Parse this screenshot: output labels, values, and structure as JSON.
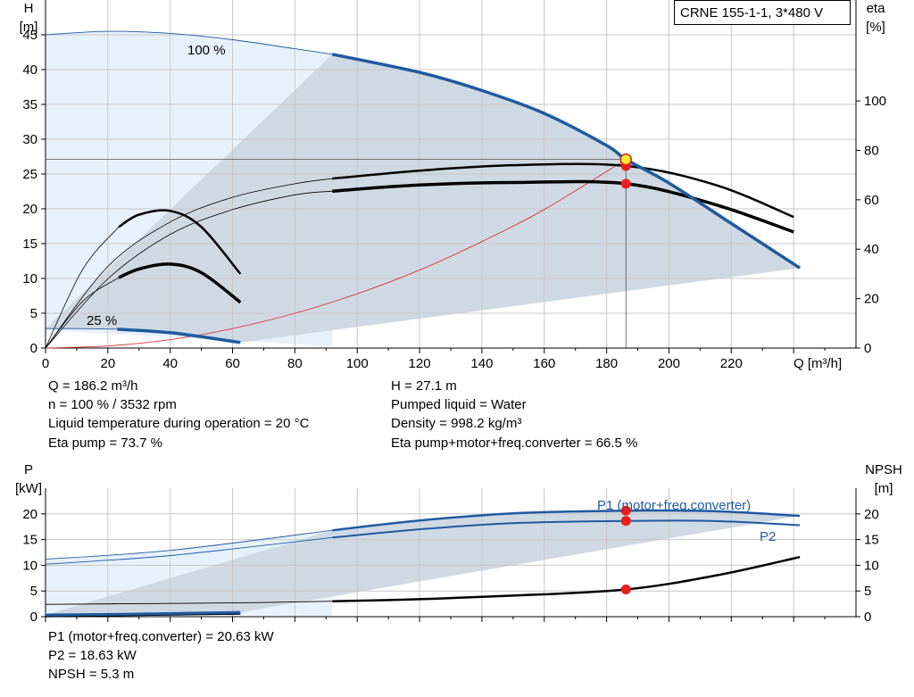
{
  "header": {
    "title": "CRNE 155-1-1, 3*480 V"
  },
  "chart_data": [
    {
      "type": "line",
      "name": "head",
      "left_axis": {
        "label": [
          "H",
          "[m]"
        ],
        "ticks": [
          0,
          5,
          10,
          15,
          20,
          25,
          30,
          35,
          40,
          45
        ],
        "lim": [
          0,
          50
        ]
      },
      "right_axis": {
        "label": [
          "eta",
          "[%]"
        ],
        "ticks": [
          0,
          20,
          40,
          60,
          80,
          100
        ],
        "lim": [
          0,
          140.85
        ]
      },
      "x_axis": {
        "label": "Q [m³/h]",
        "ticks": [
          0,
          20,
          40,
          60,
          80,
          100,
          120,
          140,
          160,
          180,
          200,
          220
        ],
        "lim": [
          0,
          260
        ]
      },
      "grid": true,
      "curve_labels": [
        "100 %",
        "25 %"
      ],
      "series": [
        {
          "id": "H_100",
          "axis": "left",
          "color": "#1f5aa0",
          "x": [
            0,
            20,
            40,
            60,
            80,
            92,
            120,
            140,
            160,
            180,
            186.2,
            200,
            220,
            242
          ],
          "y": [
            45,
            45.5,
            45.2,
            44.3,
            43,
            42.2,
            39.6,
            37,
            33.7,
            29.1,
            27.1,
            23.7,
            17.9,
            11.5
          ]
        },
        {
          "id": "H_25",
          "axis": "left",
          "color": "#1f5aa0",
          "x": [
            0,
            10,
            23,
            40,
            62.5
          ],
          "y": [
            2.8,
            2.8,
            2.7,
            2.2,
            0.8
          ]
        },
        {
          "id": "eta_pump",
          "axis": "right",
          "color": "#000000",
          "x": [
            0,
            20,
            40,
            60,
            80,
            92,
            120,
            150,
            186.2,
            215,
            240
          ],
          "y": [
            0,
            33,
            51,
            61,
            66.5,
            68.6,
            71.8,
            74,
            73.7,
            66,
            53
          ]
        },
        {
          "id": "eta_total",
          "axis": "right",
          "color": "#000000",
          "x": [
            0,
            20,
            40,
            60,
            80,
            92,
            120,
            150,
            186.2,
            215,
            240
          ],
          "y": [
            0,
            28,
            46,
            56,
            62,
            63.5,
            66,
            67,
            66.5,
            58,
            47
          ]
        },
        {
          "id": "eta_pump_low",
          "axis": "right",
          "color": "#000000",
          "x": [
            0,
            12,
            23.5,
            30,
            40,
            50,
            62.5
          ],
          "y": [
            0,
            32,
            49,
            54,
            55.5,
            49,
            30
          ]
        },
        {
          "id": "eta_total_low",
          "axis": "right",
          "color": "#000000",
          "x": [
            0,
            12,
            23.5,
            30,
            40,
            50,
            62.5
          ],
          "y": [
            0,
            19,
            28.5,
            32,
            34,
            30.5,
            18.5
          ]
        },
        {
          "id": "system",
          "axis": "left",
          "color": "#e03030",
          "x": [
            0,
            20,
            40,
            60,
            80,
            100,
            120,
            140,
            160,
            186.2
          ],
          "y": [
            0,
            0.3,
            1.2,
            2.8,
            5.0,
            7.8,
            11.2,
            15.3,
            19.9,
            27.1
          ]
        }
      ],
      "operating_point": {
        "Q": 186.2,
        "H": 27.1,
        "eta_pump": 73.7,
        "eta_total": 66.5
      }
    },
    {
      "type": "line",
      "name": "power",
      "left_axis": {
        "label": [
          "P",
          "[kW]"
        ],
        "ticks": [
          0,
          5,
          10,
          15,
          20
        ],
        "lim": [
          0,
          25
        ]
      },
      "right_axis": {
        "label": [
          "NPSH",
          "[m]"
        ],
        "ticks": [
          0,
          5,
          10,
          15,
          20
        ],
        "lim": [
          0,
          25
        ]
      },
      "x_axis": {
        "lim": [
          0,
          260
        ]
      },
      "grid": true,
      "curve_labels": [
        "P1 (motor+freq.converter)",
        "P2"
      ],
      "series": [
        {
          "id": "P1",
          "axis": "left",
          "color": "#1f5aa0",
          "x": [
            0,
            40,
            92,
            120,
            150,
            186.2,
            215,
            242
          ],
          "y": [
            11.2,
            12.9,
            16.8,
            18.7,
            20.1,
            20.63,
            20.5,
            19.6
          ]
        },
        {
          "id": "P2",
          "axis": "left",
          "color": "#1f5aa0",
          "x": [
            0,
            40,
            92,
            120,
            150,
            186.2,
            215,
            242
          ],
          "y": [
            10.2,
            11.9,
            15.4,
            17.0,
            18.2,
            18.63,
            18.6,
            17.8
          ]
        },
        {
          "id": "P_low",
          "axis": "left",
          "color": "#1f5aa0",
          "x": [
            0,
            23,
            62.5
          ],
          "y": [
            0.35,
            0.45,
            0.85
          ]
        },
        {
          "id": "NPSH",
          "axis": "right",
          "color": "#000000",
          "x": [
            0,
            23,
            62.5,
            92,
            120,
            150,
            186.2,
            215,
            242
          ],
          "y": [
            2.4,
            2.5,
            2.7,
            3.0,
            3.4,
            4.1,
            5.3,
            8.0,
            11.6
          ]
        },
        {
          "id": "NPSH_low",
          "axis": "right",
          "color": "#000000",
          "x": [
            0,
            23,
            62.5
          ],
          "y": [
            0.1,
            0.3,
            0.6
          ]
        }
      ],
      "operating_point": {
        "Q": 186.2,
        "P1": 20.63,
        "P2": 18.63,
        "NPSH": 5.3
      }
    }
  ],
  "info_top": [
    "Q = 186.2 m³/h",
    "n = 100 % / 3532 rpm",
    "Liquid temperature during operation = 20 °C",
    "Eta pump = 73.7 %",
    "H = 27.1 m",
    "Pumped liquid = Water",
    "Density = 998.2 kg/m³",
    "Eta pump+motor+freq.converter = 66.5 %"
  ],
  "info_bottom": [
    "P1 (motor+freq.converter) = 20.63 kW",
    "P2 = 18.63 kW",
    "NPSH = 5.3 m"
  ]
}
